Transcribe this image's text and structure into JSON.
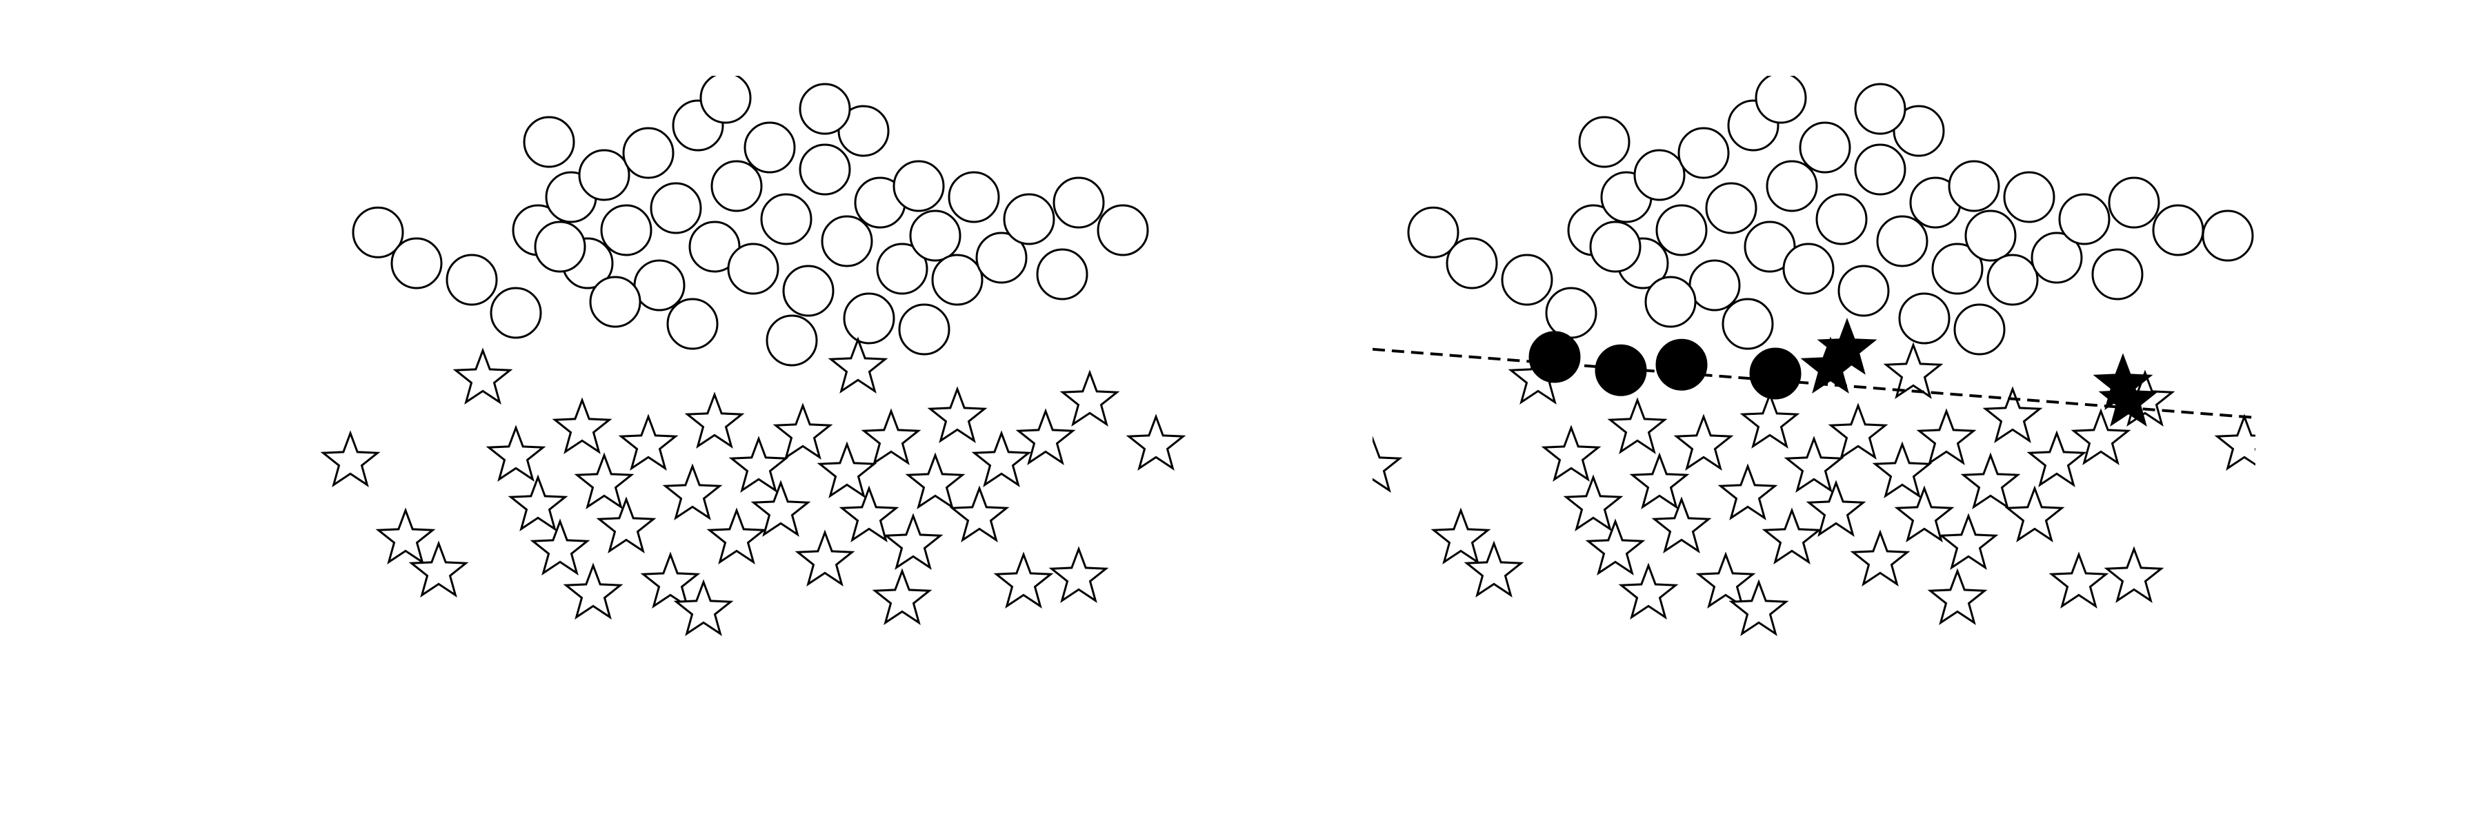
{
  "chart_data": [
    {
      "type": "scatter",
      "title": "",
      "xlabel": "",
      "ylabel": "",
      "axes_visible": false,
      "xlim": [
        -4,
        4
      ],
      "ylim": [
        -3,
        3
      ],
      "series": [
        {
          "marker": "circle",
          "fill": "white",
          "points": [
            [
              -3.45,
              1.58
            ],
            [
              -3.1,
              1.3
            ],
            [
              -2.6,
              1.15
            ],
            [
              -2.2,
              0.85
            ],
            [
              -2.0,
              1.6
            ],
            [
              -1.9,
              2.4
            ],
            [
              -1.7,
              1.9
            ],
            [
              -1.55,
              1.3
            ],
            [
              -1.4,
              2.1
            ],
            [
              -1.2,
              1.6
            ],
            [
              -1.0,
              2.3
            ],
            [
              -0.9,
              1.1
            ],
            [
              -0.75,
              1.8
            ],
            [
              -0.55,
              2.55
            ],
            [
              -0.4,
              1.45
            ],
            [
              -0.2,
              2.0
            ],
            [
              -0.05,
              1.25
            ],
            [
              0.1,
              2.35
            ],
            [
              0.25,
              1.7
            ],
            [
              0.45,
              1.05
            ],
            [
              0.6,
              2.15
            ],
            [
              0.8,
              1.5
            ],
            [
              0.95,
              2.5
            ],
            [
              1.1,
              1.85
            ],
            [
              1.3,
              1.25
            ],
            [
              1.45,
              2.0
            ],
            [
              1.6,
              1.55
            ],
            [
              1.8,
              1.15
            ],
            [
              1.95,
              1.9
            ],
            [
              2.2,
              1.35
            ],
            [
              2.45,
              1.7
            ],
            [
              2.75,
              1.2
            ],
            [
              2.9,
              1.85
            ],
            [
              3.3,
              1.6
            ],
            [
              -1.3,
              0.95
            ],
            [
              -0.6,
              0.75
            ],
            [
              0.3,
              0.6
            ],
            [
              1.0,
              0.8
            ],
            [
              1.5,
              0.7
            ],
            [
              -0.3,
              2.8
            ],
            [
              0.6,
              2.7
            ],
            [
              -1.8,
              1.45
            ]
          ]
        },
        {
          "marker": "star",
          "fill": "white",
          "points": [
            [
              -3.7,
              -0.5
            ],
            [
              -3.2,
              -1.2
            ],
            [
              -2.9,
              -1.5
            ],
            [
              -2.5,
              0.25
            ],
            [
              -2.2,
              -0.45
            ],
            [
              -2.0,
              -0.9
            ],
            [
              -1.8,
              -1.3
            ],
            [
              -1.6,
              -0.2
            ],
            [
              -1.4,
              -0.7
            ],
            [
              -1.2,
              -1.1
            ],
            [
              -1.0,
              -0.35
            ],
            [
              -0.8,
              -1.6
            ],
            [
              -0.6,
              -0.8
            ],
            [
              -0.4,
              -0.15
            ],
            [
              -0.2,
              -1.2
            ],
            [
              0.0,
              -0.55
            ],
            [
              0.2,
              -0.95
            ],
            [
              0.4,
              -0.25
            ],
            [
              0.6,
              -1.4
            ],
            [
              0.8,
              -0.6
            ],
            [
              1.0,
              -1.0
            ],
            [
              1.2,
              -0.3
            ],
            [
              1.4,
              -1.25
            ],
            [
              1.6,
              -0.7
            ],
            [
              1.8,
              -0.1
            ],
            [
              2.0,
              -1.0
            ],
            [
              2.2,
              -0.5
            ],
            [
              2.4,
              -1.6
            ],
            [
              2.6,
              -0.3
            ],
            [
              2.9,
              -1.55
            ],
            [
              3.0,
              0.05
            ],
            [
              3.6,
              -0.35
            ],
            [
              -1.5,
              -1.7
            ],
            [
              0.9,
              0.35
            ],
            [
              -0.5,
              -1.85
            ],
            [
              1.3,
              -1.75
            ]
          ]
        }
      ]
    },
    {
      "type": "scatter",
      "title": "",
      "xlabel": "",
      "ylabel": "",
      "axes_visible": false,
      "xlim": [
        -4,
        4
      ],
      "ylim": [
        -3,
        3
      ],
      "decision_boundary": {
        "style": "dashed",
        "x": [
          -4,
          4
        ],
        "y": [
          0.52,
          -0.1
        ]
      },
      "series": [
        {
          "marker": "circle",
          "fill": "white",
          "points": [
            [
              -3.45,
              1.58
            ],
            [
              -3.1,
              1.3
            ],
            [
              -2.6,
              1.15
            ],
            [
              -2.2,
              0.85
            ],
            [
              -2.0,
              1.6
            ],
            [
              -1.9,
              2.4
            ],
            [
              -1.7,
              1.9
            ],
            [
              -1.55,
              1.3
            ],
            [
              -1.4,
              2.1
            ],
            [
              -1.2,
              1.6
            ],
            [
              -1.0,
              2.3
            ],
            [
              -0.9,
              1.1
            ],
            [
              -0.75,
              1.8
            ],
            [
              -0.55,
              2.55
            ],
            [
              -0.4,
              1.45
            ],
            [
              -0.2,
              2.0
            ],
            [
              -0.05,
              1.25
            ],
            [
              0.1,
              2.35
            ],
            [
              0.25,
              1.7
            ],
            [
              0.45,
              1.05
            ],
            [
              0.6,
              2.15
            ],
            [
              0.8,
              1.5
            ],
            [
              0.95,
              2.5
            ],
            [
              1.1,
              1.85
            ],
            [
              1.3,
              1.25
            ],
            [
              1.45,
              2.0
            ],
            [
              1.6,
              1.55
            ],
            [
              1.8,
              1.15
            ],
            [
              1.95,
              1.9
            ],
            [
              2.2,
              1.35
            ],
            [
              2.45,
              1.7
            ],
            [
              2.75,
              1.2
            ],
            [
              2.9,
              1.85
            ],
            [
              3.3,
              1.6
            ],
            [
              -1.3,
              0.95
            ],
            [
              -0.6,
              0.75
            ],
            [
              1.0,
              0.8
            ],
            [
              1.5,
              0.7
            ],
            [
              -0.3,
              2.8
            ],
            [
              0.6,
              2.7
            ],
            [
              -1.8,
              1.45
            ],
            [
              3.75,
              1.55
            ]
          ]
        },
        {
          "marker": "star",
          "fill": "white",
          "points": [
            [
              -4.0,
              -0.55
            ],
            [
              -3.2,
              -1.2
            ],
            [
              -2.9,
              -1.5
            ],
            [
              -2.5,
              0.25
            ],
            [
              -2.2,
              -0.45
            ],
            [
              -2.0,
              -0.9
            ],
            [
              -1.8,
              -1.3
            ],
            [
              -1.6,
              -0.2
            ],
            [
              -1.4,
              -0.7
            ],
            [
              -1.2,
              -1.1
            ],
            [
              -1.0,
              -0.35
            ],
            [
              -0.8,
              -1.6
            ],
            [
              -0.6,
              -0.8
            ],
            [
              -0.4,
              -0.15
            ],
            [
              -0.2,
              -1.2
            ],
            [
              0.0,
              -0.55
            ],
            [
              0.2,
              -0.95
            ],
            [
              0.4,
              -0.25
            ],
            [
              0.6,
              -1.4
            ],
            [
              0.8,
              -0.6
            ],
            [
              1.0,
              -1.0
            ],
            [
              1.2,
              -0.3
            ],
            [
              1.4,
              -1.25
            ],
            [
              1.6,
              -0.7
            ],
            [
              1.8,
              -0.1
            ],
            [
              2.0,
              -1.0
            ],
            [
              2.2,
              -0.5
            ],
            [
              2.4,
              -1.6
            ],
            [
              2.6,
              -0.3
            ],
            [
              2.9,
              -1.55
            ],
            [
              3.0,
              0.05
            ],
            [
              3.9,
              -0.35
            ],
            [
              -1.5,
              -1.7
            ],
            [
              0.9,
              0.3
            ],
            [
              -0.5,
              -1.85
            ],
            [
              1.3,
              -1.75
            ]
          ]
        },
        {
          "marker": "circle",
          "fill": "black",
          "points": [
            [
              -2.35,
              0.45
            ],
            [
              -1.75,
              0.33
            ],
            [
              -1.2,
              0.38
            ],
            [
              -0.35,
              0.3
            ]
          ]
        },
        {
          "marker": "star",
          "fill": "black",
          "points": [
            [
              0.3,
              0.52
            ],
            [
              0.15,
              0.35
            ],
            [
              2.8,
              0.2
            ],
            [
              2.85,
              0.05
            ]
          ]
        }
      ]
    }
  ]
}
